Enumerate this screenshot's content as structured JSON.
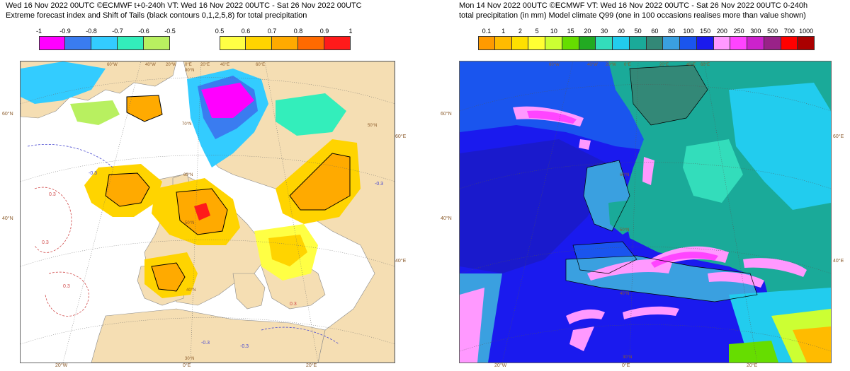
{
  "left": {
    "title_line1": "Wed 16 Nov 2022 00UTC ©ECMWF t+0-240h  VT: Wed 16 Nov 2022 00UTC - Sat 26 Nov 2022 00UTC",
    "title_line2": "Extreme forecast index and Shift of Tails (black contours 0,1,2,5,8) for total precipitation",
    "neg_scale": {
      "labels": [
        "-1",
        "-0.9",
        "-0.8",
        "-0.7",
        "-0.6",
        "-0.5"
      ],
      "colors": [
        "#ff00ff",
        "#3a7cf0",
        "#33ccff",
        "#33eebb",
        "#b8f060"
      ]
    },
    "pos_scale": {
      "labels": [
        "0.5",
        "0.6",
        "0.7",
        "0.8",
        "0.9",
        "1"
      ],
      "colors": [
        "#ffff44",
        "#ffd400",
        "#ffaa00",
        "#ff6a00",
        "#ff1a1a"
      ]
    },
    "lat_labels": [
      "60°N",
      "40°N"
    ],
    "lon_labels": [
      "20°W",
      "0°E",
      "20°E"
    ],
    "ext_labels": [
      "60°E",
      "40°E"
    ],
    "grid_labels": [
      "60°W",
      "40°W",
      "20°W",
      "0°E",
      "20°E",
      "40°E",
      "60°E",
      "80°N",
      "70°N",
      "60°N",
      "50°N",
      "50°N",
      "40°N",
      "30°N"
    ],
    "contour_labels": [
      "0.3",
      "-0.3",
      "0.3",
      "-0.3",
      "-0.3",
      "0.3",
      "0.3",
      "-0.3"
    ],
    "colors": {
      "land": "#f5deb3",
      "sea": "#ffffff",
      "coast": "#8a8a8a"
    }
  },
  "right": {
    "title_line1": "Mon 14 Nov 2022 00UTC ©ECMWF VT: Wed 16 Nov 2022 00UTC - Sat 26 Nov 2022 00UTC   0-240h",
    "title_line2": "total precipitation (in mm)  Model climate Q99 (one in 100 occasions realises more than value shown)",
    "scale": {
      "labels": [
        "0.1",
        "1",
        "2",
        "5",
        "10",
        "15",
        "20",
        "30",
        "40",
        "50",
        "60",
        "80",
        "100",
        "150",
        "200",
        "250",
        "300",
        "500",
        "700",
        "1000"
      ],
      "colors": [
        "#ff9a00",
        "#ffbb00",
        "#ffe000",
        "#ffff33",
        "#ccff33",
        "#66dd00",
        "#22aa22",
        "#33ddbb",
        "#22ccee",
        "#1aaa99",
        "#338877",
        "#3aa0e0",
        "#1a55ee",
        "#1a1aee",
        "#ff99ff",
        "#ff44ff",
        "#cc22cc",
        "#992288",
        "#ff0000",
        "#aa0000"
      ]
    },
    "lat_labels": [
      "60°N",
      "40°N"
    ],
    "lon_labels": [
      "20°W",
      "0°E",
      "20°E"
    ],
    "ext_labels": [
      "60°E",
      "40°E"
    ],
    "grid_labels": [
      "60°W",
      "40°W",
      "20°W",
      "0°E",
      "20°E",
      "40°E",
      "60°E",
      "60°N",
      "50°N",
      "40°N",
      "30°N"
    ],
    "colors": {
      "sea_base": "#1a1aee",
      "coast": "#000000"
    }
  }
}
